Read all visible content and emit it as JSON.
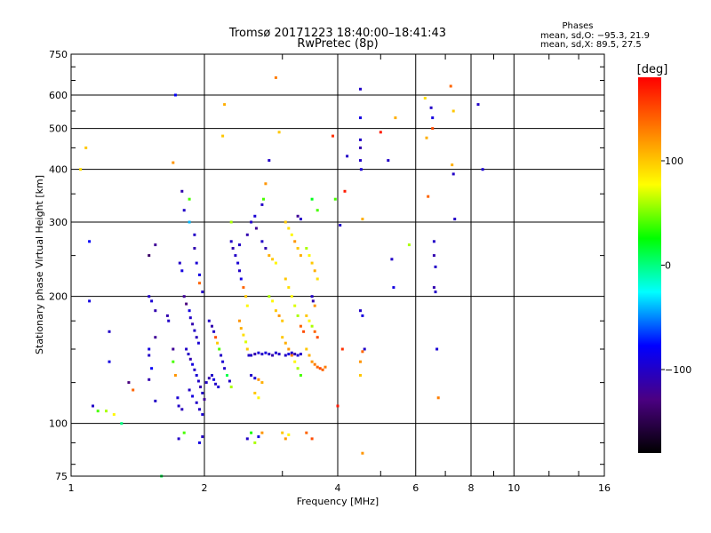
{
  "chart_data": {
    "type": "scatter",
    "title": "Tromsø 20171223 18:40:00–18:41:43",
    "subtitle": "RwPretec (8p)",
    "xlabel": "Frequency [MHz]",
    "ylabel": "Stationary phase Virtual Height [km]",
    "x_scale": "log",
    "y_scale": "log",
    "xlim": [
      1,
      16
    ],
    "ylim": [
      75,
      750
    ],
    "x_ticks": [
      "1",
      "2",
      "4",
      "6",
      "8",
      "10",
      "16"
    ],
    "y_ticks": [
      "750",
      "600",
      "500",
      "400",
      "300",
      "200",
      "100",
      "75"
    ],
    "grid": true,
    "stats": {
      "heading": "Phases",
      "line_o": "mean, sd,O: −95.3, 21.9",
      "line_x": "mean, sd,X: 89.5, 27.5"
    },
    "colorbar": {
      "label": "[deg]",
      "range": [
        -180,
        180
      ],
      "ticks": [
        "100",
        "0",
        "−100"
      ],
      "colors": [
        "#000000",
        "#4b0082",
        "#0000ff",
        "#00ffff",
        "#00ff00",
        "#ffff00",
        "#ff8000",
        "#ff0000"
      ]
    },
    "points": [
      [
        1.05,
        400,
        90
      ],
      [
        1.08,
        450,
        100
      ],
      [
        1.1,
        270,
        -80
      ],
      [
        1.1,
        195,
        -90
      ],
      [
        1.12,
        110,
        -100
      ],
      [
        1.15,
        107,
        40
      ],
      [
        1.2,
        107,
        60
      ],
      [
        1.25,
        105,
        80
      ],
      [
        1.3,
        100,
        0
      ],
      [
        1.22,
        165,
        -100
      ],
      [
        1.22,
        140,
        -90
      ],
      [
        1.35,
        125,
        -130
      ],
      [
        1.38,
        120,
        140
      ],
      [
        1.5,
        200,
        -100
      ],
      [
        1.52,
        195,
        -95
      ],
      [
        1.55,
        185,
        -110
      ],
      [
        1.55,
        160,
        -120
      ],
      [
        1.5,
        150,
        -90
      ],
      [
        1.5,
        145,
        -100
      ],
      [
        1.52,
        135,
        -80
      ],
      [
        1.5,
        127,
        -110
      ],
      [
        1.55,
        113,
        -100
      ],
      [
        1.5,
        250,
        -140
      ],
      [
        1.55,
        265,
        -120
      ],
      [
        1.6,
        75,
        10
      ],
      [
        1.65,
        180,
        -110
      ],
      [
        1.66,
        175,
        -100
      ],
      [
        1.7,
        150,
        -120
      ],
      [
        1.7,
        140,
        40
      ],
      [
        1.72,
        130,
        120
      ],
      [
        1.74,
        115,
        -95
      ],
      [
        1.75,
        110,
        -100
      ],
      [
        1.78,
        108,
        -105
      ],
      [
        1.76,
        240,
        -100
      ],
      [
        1.78,
        230,
        -90
      ],
      [
        1.8,
        320,
        -100
      ],
      [
        1.78,
        355,
        -110
      ],
      [
        1.85,
        340,
        40
      ],
      [
        1.85,
        300,
        -40
      ],
      [
        1.9,
        280,
        -100
      ],
      [
        1.9,
        260,
        -110
      ],
      [
        1.92,
        240,
        -95
      ],
      [
        1.95,
        225,
        -90
      ],
      [
        1.95,
        215,
        140
      ],
      [
        1.98,
        205,
        -100
      ],
      [
        1.8,
        200,
        -120
      ],
      [
        1.82,
        192,
        -130
      ],
      [
        1.85,
        185,
        -90
      ],
      [
        1.86,
        178,
        -100
      ],
      [
        1.88,
        172,
        -110
      ],
      [
        1.9,
        166,
        -100
      ],
      [
        1.92,
        160,
        -105
      ],
      [
        1.94,
        155,
        -95
      ],
      [
        1.82,
        150,
        -100
      ],
      [
        1.84,
        146,
        -100
      ],
      [
        1.86,
        142,
        -110
      ],
      [
        1.88,
        138,
        -90
      ],
      [
        1.9,
        134,
        -100
      ],
      [
        1.92,
        130,
        -95
      ],
      [
        1.94,
        126,
        -100
      ],
      [
        1.96,
        122,
        -110
      ],
      [
        1.98,
        118,
        -100
      ],
      [
        2.0,
        114,
        -120
      ],
      [
        1.85,
        120,
        -100
      ],
      [
        1.88,
        116,
        -90
      ],
      [
        1.92,
        112,
        -100
      ],
      [
        1.95,
        108,
        -100
      ],
      [
        1.98,
        105,
        -95
      ],
      [
        2.02,
        125,
        -100
      ],
      [
        2.05,
        128,
        -110
      ],
      [
        2.08,
        130,
        -100
      ],
      [
        2.1,
        127,
        -90
      ],
      [
        2.12,
        124,
        -100
      ],
      [
        2.15,
        122,
        -95
      ],
      [
        1.72,
        600,
        -80
      ],
      [
        1.7,
        415,
        120
      ],
      [
        1.75,
        92,
        -100
      ],
      [
        1.8,
        95,
        40
      ],
      [
        1.95,
        90,
        -90
      ],
      [
        1.98,
        93,
        -100
      ],
      [
        2.05,
        175,
        -100
      ],
      [
        2.08,
        170,
        -110
      ],
      [
        2.1,
        165,
        -100
      ],
      [
        2.12,
        160,
        150
      ],
      [
        2.14,
        155,
        100
      ],
      [
        2.16,
        150,
        40
      ],
      [
        2.18,
        145,
        -100
      ],
      [
        2.2,
        140,
        -95
      ],
      [
        2.22,
        135,
        -100
      ],
      [
        2.25,
        130,
        10
      ],
      [
        2.28,
        126,
        -100
      ],
      [
        2.3,
        122,
        60
      ],
      [
        2.2,
        480,
        100
      ],
      [
        2.22,
        570,
        110
      ],
      [
        2.3,
        300,
        60
      ],
      [
        2.3,
        270,
        -100
      ],
      [
        2.32,
        260,
        -110
      ],
      [
        2.35,
        250,
        -100
      ],
      [
        2.38,
        240,
        -95
      ],
      [
        2.4,
        230,
        -100
      ],
      [
        2.42,
        220,
        -90
      ],
      [
        2.45,
        210,
        140
      ],
      [
        2.48,
        200,
        100
      ],
      [
        2.5,
        190,
        80
      ],
      [
        2.4,
        175,
        120
      ],
      [
        2.42,
        168,
        110
      ],
      [
        2.45,
        162,
        90
      ],
      [
        2.48,
        156,
        70
      ],
      [
        2.5,
        150,
        100
      ],
      [
        2.52,
        145,
        -100
      ],
      [
        2.55,
        145,
        -100
      ],
      [
        2.6,
        146,
        -110
      ],
      [
        2.65,
        147,
        -95
      ],
      [
        2.7,
        146,
        -100
      ],
      [
        2.75,
        147,
        -90
      ],
      [
        2.8,
        146,
        -100
      ],
      [
        2.85,
        145,
        -110
      ],
      [
        2.9,
        147,
        -95
      ],
      [
        2.95,
        146,
        -100
      ],
      [
        2.55,
        130,
        -100
      ],
      [
        2.6,
        128,
        -95
      ],
      [
        2.65,
        127,
        120
      ],
      [
        2.7,
        125,
        110
      ],
      [
        2.6,
        118,
        100
      ],
      [
        2.65,
        115,
        80
      ],
      [
        2.5,
        92,
        -100
      ],
      [
        2.55,
        95,
        30
      ],
      [
        2.6,
        90,
        60
      ],
      [
        2.65,
        93,
        -90
      ],
      [
        2.7,
        95,
        120
      ],
      [
        2.4,
        265,
        -100
      ],
      [
        2.5,
        280,
        -110
      ],
      [
        2.55,
        300,
        -100
      ],
      [
        2.6,
        310,
        -95
      ],
      [
        2.62,
        290,
        -120
      ],
      [
        2.7,
        270,
        -100
      ],
      [
        2.75,
        260,
        -110
      ],
      [
        2.8,
        250,
        110
      ],
      [
        2.85,
        245,
        100
      ],
      [
        2.9,
        240,
        80
      ],
      [
        2.8,
        200,
        60
      ],
      [
        2.85,
        195,
        80
      ],
      [
        2.9,
        185,
        100
      ],
      [
        2.95,
        180,
        120
      ],
      [
        3.0,
        175,
        100
      ],
      [
        2.7,
        330,
        -100
      ],
      [
        2.72,
        340,
        40
      ],
      [
        2.75,
        370,
        120
      ],
      [
        2.8,
        420,
        -100
      ],
      [
        2.95,
        490,
        100
      ],
      [
        2.9,
        660,
        130
      ],
      [
        3.05,
        300,
        100
      ],
      [
        3.1,
        290,
        90
      ],
      [
        3.15,
        280,
        80
      ],
      [
        3.2,
        270,
        120
      ],
      [
        3.25,
        260,
        100
      ],
      [
        3.3,
        250,
        110
      ],
      [
        3.05,
        220,
        100
      ],
      [
        3.1,
        210,
        90
      ],
      [
        3.15,
        200,
        80
      ],
      [
        3.2,
        190,
        70
      ],
      [
        3.25,
        180,
        60
      ],
      [
        3.3,
        170,
        140
      ],
      [
        3.35,
        165,
        150
      ],
      [
        3.0,
        160,
        100
      ],
      [
        3.05,
        155,
        110
      ],
      [
        3.1,
        150,
        120
      ],
      [
        3.15,
        145,
        130
      ],
      [
        3.2,
        140,
        80
      ],
      [
        3.25,
        135,
        60
      ],
      [
        3.3,
        130,
        40
      ],
      [
        3.05,
        145,
        -100
      ],
      [
        3.1,
        146,
        -90
      ],
      [
        3.15,
        147,
        -100
      ],
      [
        3.2,
        146,
        -110
      ],
      [
        3.25,
        145,
        -95
      ],
      [
        3.3,
        146,
        -100
      ],
      [
        3.0,
        95,
        100
      ],
      [
        3.05,
        92,
        120
      ],
      [
        3.1,
        94,
        80
      ],
      [
        3.25,
        310,
        -120
      ],
      [
        3.3,
        305,
        -100
      ],
      [
        3.4,
        260,
        60
      ],
      [
        3.45,
        250,
        80
      ],
      [
        3.5,
        240,
        100
      ],
      [
        3.55,
        230,
        110
      ],
      [
        3.6,
        220,
        90
      ],
      [
        3.5,
        200,
        -100
      ],
      [
        3.52,
        195,
        -110
      ],
      [
        3.55,
        190,
        120
      ],
      [
        3.4,
        180,
        100
      ],
      [
        3.45,
        175,
        80
      ],
      [
        3.5,
        170,
        60
      ],
      [
        3.55,
        165,
        140
      ],
      [
        3.6,
        160,
        150
      ],
      [
        3.4,
        150,
        100
      ],
      [
        3.45,
        145,
        110
      ],
      [
        3.5,
        140,
        120
      ],
      [
        3.55,
        138,
        130
      ],
      [
        3.6,
        136,
        140
      ],
      [
        3.65,
        135,
        150
      ],
      [
        3.7,
        134,
        140
      ],
      [
        3.75,
        136,
        130
      ],
      [
        3.5,
        340,
        20
      ],
      [
        3.6,
        320,
        40
      ],
      [
        3.4,
        95,
        140
      ],
      [
        3.5,
        92,
        150
      ],
      [
        3.9,
        480,
        160
      ],
      [
        3.95,
        340,
        40
      ],
      [
        4.0,
        110,
        170
      ],
      [
        4.05,
        295,
        -100
      ],
      [
        4.1,
        150,
        160
      ],
      [
        4.15,
        355,
        170
      ],
      [
        4.2,
        430,
        -100
      ],
      [
        4.5,
        620,
        -100
      ],
      [
        4.5,
        530,
        -90
      ],
      [
        4.5,
        470,
        -100
      ],
      [
        4.5,
        450,
        -110
      ],
      [
        4.5,
        420,
        -100
      ],
      [
        4.52,
        400,
        -95
      ],
      [
        4.55,
        305,
        110
      ],
      [
        4.5,
        185,
        -100
      ],
      [
        4.55,
        180,
        -90
      ],
      [
        4.6,
        150,
        -100
      ],
      [
        4.55,
        148,
        140
      ],
      [
        4.5,
        140,
        120
      ],
      [
        4.5,
        130,
        100
      ],
      [
        4.55,
        85,
        120
      ],
      [
        5.0,
        490,
        170
      ],
      [
        5.2,
        420,
        -100
      ],
      [
        5.3,
        245,
        -100
      ],
      [
        5.35,
        210,
        -90
      ],
      [
        5.4,
        530,
        110
      ],
      [
        5.8,
        265,
        60
      ],
      [
        6.3,
        590,
        90
      ],
      [
        6.35,
        475,
        110
      ],
      [
        6.4,
        345,
        140
      ],
      [
        6.5,
        560,
        -100
      ],
      [
        6.55,
        530,
        -90
      ],
      [
        6.6,
        270,
        -100
      ],
      [
        6.6,
        250,
        -110
      ],
      [
        6.65,
        235,
        -100
      ],
      [
        6.6,
        210,
        -110
      ],
      [
        6.65,
        205,
        -100
      ],
      [
        6.7,
        150,
        -95
      ],
      [
        6.75,
        115,
        130
      ],
      [
        6.55,
        500,
        150
      ],
      [
        7.2,
        630,
        140
      ],
      [
        7.3,
        550,
        100
      ],
      [
        7.25,
        410,
        110
      ],
      [
        7.3,
        390,
        -100
      ],
      [
        7.35,
        305,
        -100
      ],
      [
        8.3,
        570,
        -100
      ],
      [
        8.5,
        400,
        -95
      ]
    ]
  }
}
